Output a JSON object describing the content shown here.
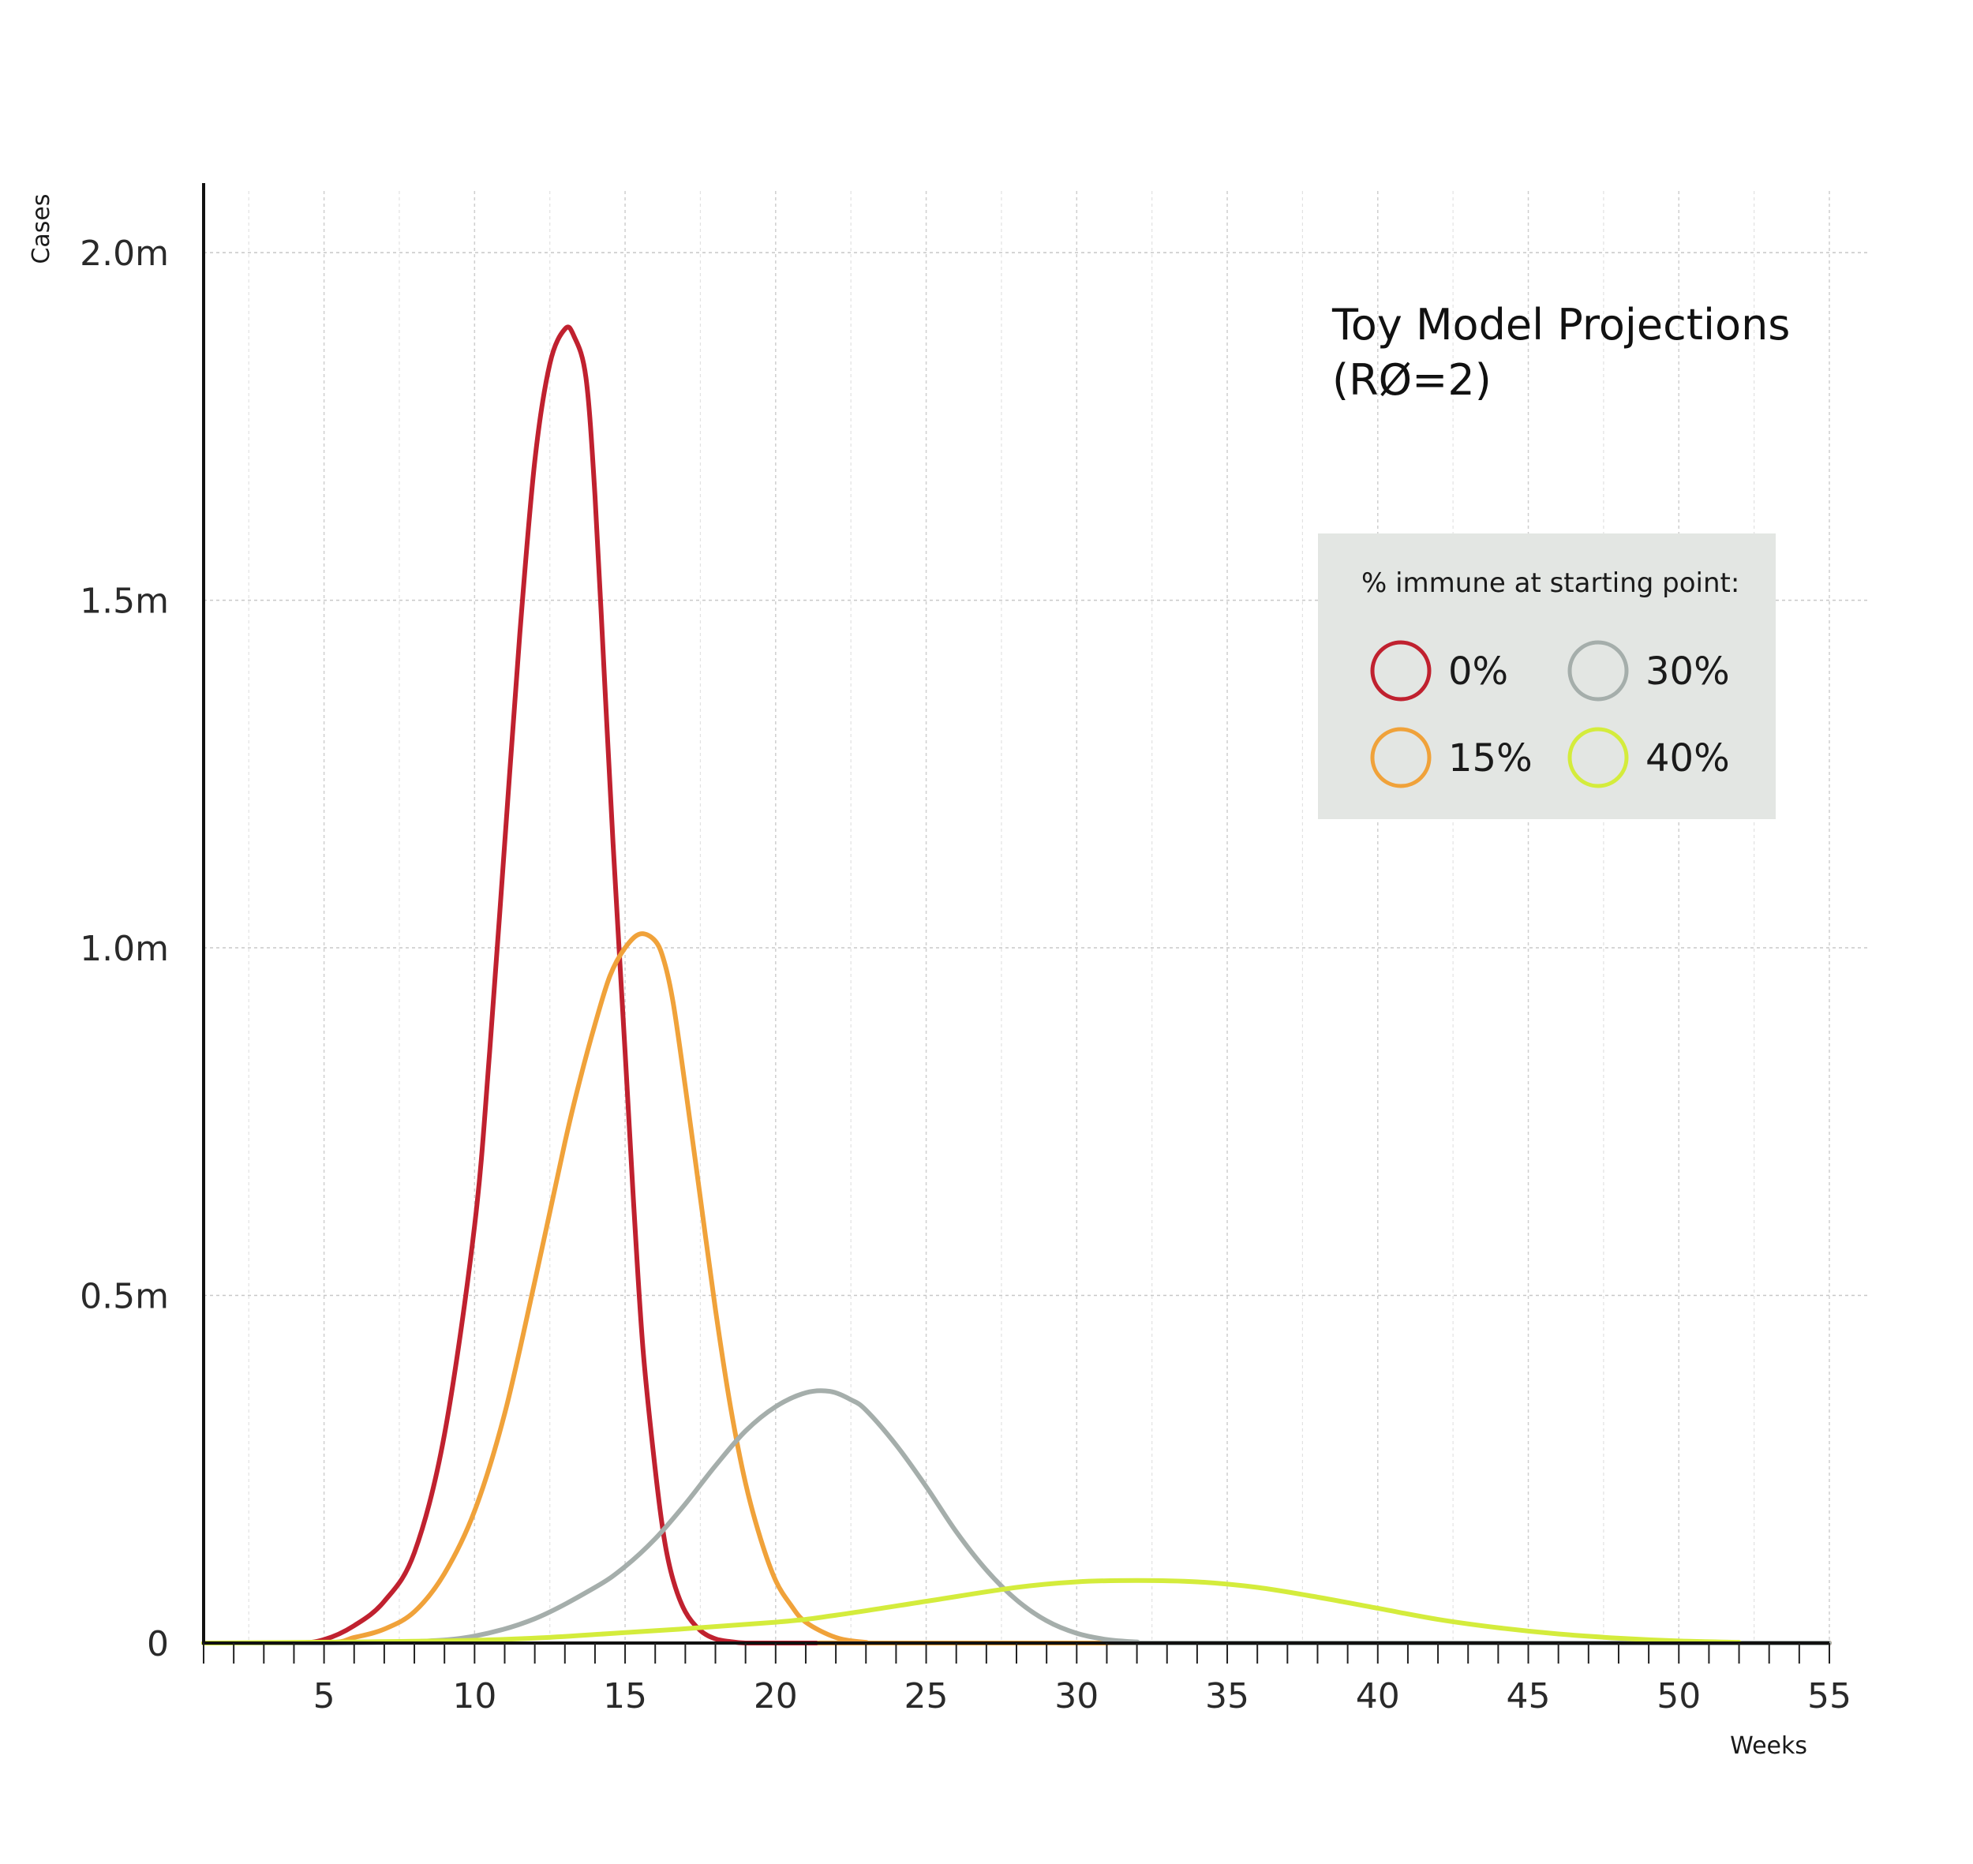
{
  "chart_data": {
    "type": "line",
    "title_lines": [
      "Toy Model Projections",
      "(RØ=2)"
    ],
    "xlabel": "Weeks",
    "ylabel": "Cases",
    "xlim": [
      1,
      55
    ],
    "ylim": [
      0,
      2100000
    ],
    "x_ticks": [
      5,
      10,
      15,
      20,
      25,
      30,
      35,
      40,
      45,
      50,
      55
    ],
    "x_tick_labels": [
      "5",
      "10",
      "15",
      "20",
      "25",
      "30",
      "35",
      "40",
      "45",
      "50",
      "55"
    ],
    "y_ticks": [
      0,
      500000,
      1000000,
      1500000,
      2000000
    ],
    "y_tick_labels": [
      "0",
      "0.5m",
      "1.0m",
      "1.5m",
      "2.0m"
    ],
    "grid": true,
    "legend": {
      "title": "% immune at starting point:",
      "placement": "top-right"
    },
    "series": [
      {
        "name": "0%",
        "color": "#c0212f",
        "x": [
          1,
          4,
          5,
          6,
          7,
          8,
          9,
          10,
          10.5,
          11,
          11.5,
          12,
          12.5,
          13,
          13.3,
          13.7,
          14,
          14.3,
          14.6,
          15,
          15.3,
          15.6,
          16,
          16.3,
          16.6,
          17,
          17.5,
          18,
          18.5,
          19,
          20,
          22,
          55
        ],
        "y": [
          0,
          0,
          5000,
          25000,
          60000,
          130000,
          300000,
          600000,
          850000,
          1150000,
          1450000,
          1700000,
          1840000,
          1890000,
          1880000,
          1820000,
          1650000,
          1400000,
          1150000,
          850000,
          620000,
          420000,
          250000,
          150000,
          90000,
          45000,
          18000,
          6000,
          2000,
          0,
          0,
          0,
          0
        ]
      },
      {
        "name": "15%",
        "color": "#f0a23a",
        "x": [
          1,
          5,
          6,
          7,
          8,
          9,
          10,
          11,
          12,
          13,
          13.5,
          14,
          14.5,
          15,
          15.5,
          16,
          16.3,
          16.6,
          17,
          17.5,
          18,
          18.5,
          19,
          19.5,
          20,
          20.5,
          21,
          22,
          23,
          24,
          55
        ],
        "y": [
          0,
          0,
          8000,
          20000,
          45000,
          100000,
          190000,
          330000,
          520000,
          720000,
          810000,
          890000,
          960000,
          1000000,
          1020000,
          1010000,
          980000,
          920000,
          800000,
          640000,
          480000,
          340000,
          230000,
          150000,
          90000,
          55000,
          30000,
          8000,
          1000,
          0,
          0
        ]
      },
      {
        "name": "30%",
        "color": "#a5aeab",
        "x": [
          1,
          5,
          8,
          10,
          12,
          14,
          15,
          16,
          17,
          18,
          19,
          20,
          21,
          21.8,
          22.5,
          23,
          24,
          25,
          26,
          27,
          28,
          29,
          30,
          31,
          32,
          33,
          55
        ],
        "y": [
          0,
          0,
          2000,
          10000,
          35000,
          80000,
          110000,
          150000,
          200000,
          255000,
          305000,
          340000,
          360000,
          362000,
          350000,
          335000,
          285000,
          225000,
          160000,
          105000,
          62000,
          32000,
          14000,
          5000,
          1500,
          0,
          0
        ]
      },
      {
        "name": "40%",
        "color": "#d4ec3c",
        "x": [
          1,
          10,
          15,
          20,
          22,
          25,
          28,
          30,
          32,
          34,
          36,
          38,
          40,
          42,
          44,
          46,
          48,
          50,
          52
        ],
        "y": [
          0,
          4000,
          15000,
          30000,
          40000,
          60000,
          80000,
          88000,
          90000,
          88000,
          80000,
          66000,
          50000,
          34000,
          22000,
          13000,
          7000,
          3000,
          1000
        ]
      }
    ]
  }
}
